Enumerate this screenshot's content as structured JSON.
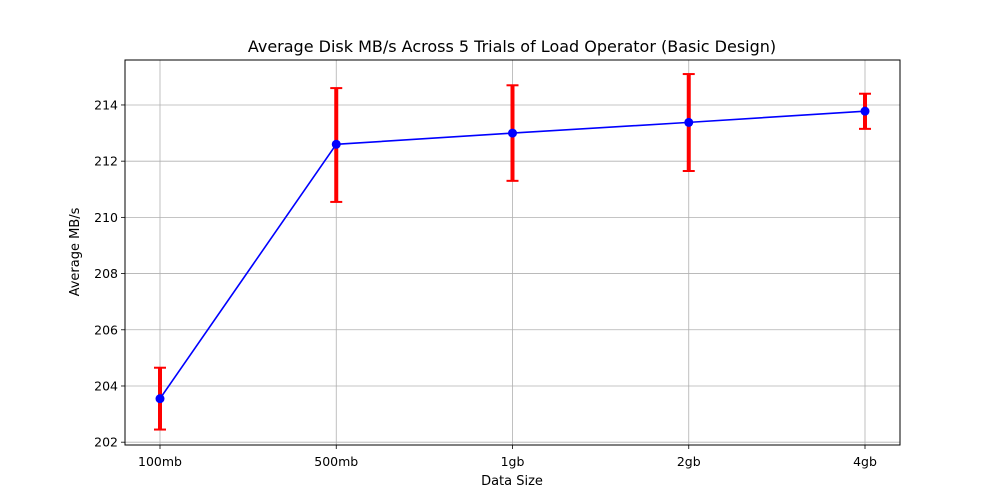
{
  "chart_data": {
    "type": "line",
    "title": "Average Disk MB/s Across 5 Trials of Load Operator (Basic Design)",
    "xlabel": "Data Size",
    "ylabel": "Average MB/s",
    "categories": [
      "100mb",
      "500mb",
      "1gb",
      "2gb",
      "4gb"
    ],
    "series": [
      {
        "values": [
          203.55,
          212.6,
          213.0,
          213.38,
          213.78
        ],
        "error_low": [
          202.45,
          210.55,
          211.3,
          211.65,
          213.15
        ],
        "error_high": [
          204.65,
          214.6,
          214.7,
          215.1,
          214.4
        ]
      }
    ],
    "ylim": [
      201.9,
      215.6
    ],
    "yticks": [
      202,
      204,
      206,
      208,
      210,
      212,
      214
    ],
    "grid": true,
    "colors": {
      "line": "#0000ff",
      "marker": "#0000ff",
      "error": "#ff0000"
    }
  }
}
